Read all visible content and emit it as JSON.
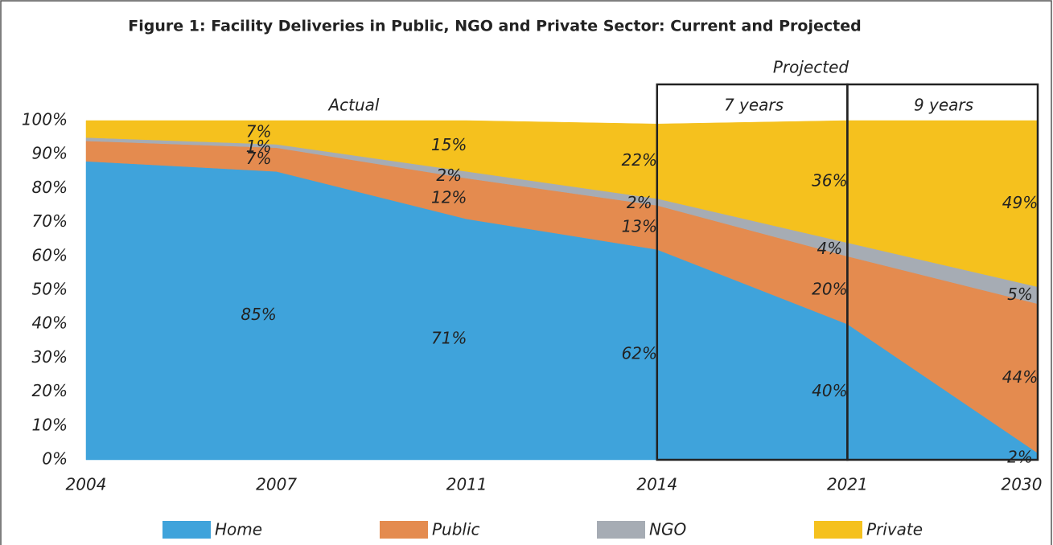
{
  "chart_data": {
    "type": "stacked_area",
    "title": "Figure 1: Facility Deliveries in Public, NGO and Private Sector: Current and Projected",
    "categories": [
      "2004",
      "2007",
      "2011",
      "2014",
      "2021",
      "2030"
    ],
    "series": [
      {
        "name": "Home",
        "color": "#3fa3db",
        "values": [
          88,
          85,
          71,
          62,
          40,
          2
        ],
        "value_labels": [
          null,
          "85%",
          "71%",
          "62%",
          "40%",
          "2%"
        ]
      },
      {
        "name": "Public",
        "color": "#e48b4f",
        "values": [
          6,
          7,
          12,
          13,
          20,
          44
        ],
        "value_labels": [
          null,
          "7%",
          "12%",
          "13%",
          "20%",
          "44%"
        ]
      },
      {
        "name": "NGO",
        "color": "#a6acb4",
        "values": [
          1,
          1,
          2,
          2,
          4,
          5
        ],
        "value_labels": [
          null,
          "1%",
          "2%",
          "2%",
          "4%",
          "5%"
        ]
      },
      {
        "name": "Private",
        "color": "#f5c11e",
        "values": [
          5,
          7,
          15,
          22,
          36,
          49
        ],
        "value_labels": [
          null,
          "7%",
          "15%",
          "22%",
          "36%",
          "49%"
        ]
      }
    ],
    "ylim": [
      0,
      100
    ],
    "yticks": [
      {
        "value": 0,
        "label": "0%"
      },
      {
        "value": 10,
        "label": "10%"
      },
      {
        "value": 20,
        "label": "20%"
      },
      {
        "value": 30,
        "label": "30%"
      },
      {
        "value": 40,
        "label": "40%"
      },
      {
        "value": 50,
        "label": "50%"
      },
      {
        "value": 60,
        "label": "60%"
      },
      {
        "value": 70,
        "label": "70%"
      },
      {
        "value": 80,
        "label": "80%"
      },
      {
        "value": 90,
        "label": "90%"
      },
      {
        "value": 100,
        "label": "100%"
      }
    ],
    "annotations": {
      "actual": "Actual",
      "projected": "Projected",
      "period1": "7 years",
      "period2": "9 years"
    },
    "legend": "bottom"
  }
}
